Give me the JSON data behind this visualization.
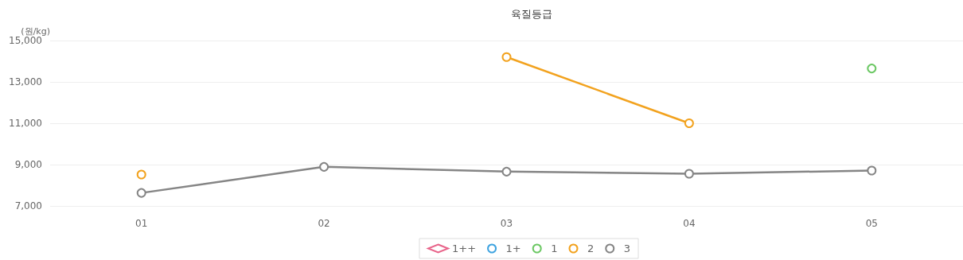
{
  "chart_data": {
    "type": "line",
    "title": "육질등급",
    "ylabel": "(원/kg)",
    "categories": [
      "01",
      "02",
      "03",
      "04",
      "05"
    ],
    "series": [
      {
        "name": "1++",
        "color": "#e8648a",
        "marker": "diamond",
        "values": [
          null,
          null,
          null,
          null,
          null
        ]
      },
      {
        "name": "1+",
        "color": "#3ea3e0",
        "values": [
          null,
          null,
          null,
          null,
          null
        ]
      },
      {
        "name": "1",
        "color": "#6cc864",
        "values": [
          null,
          null,
          null,
          null,
          13650
        ]
      },
      {
        "name": "2",
        "color": "#f2a21e",
        "values": [
          8520,
          null,
          14200,
          11000,
          null
        ]
      },
      {
        "name": "3",
        "color": "#858585",
        "values": [
          7630,
          8890,
          8660,
          8560,
          8710
        ]
      }
    ],
    "ylim": [
      7000,
      15000
    ],
    "yticks": [
      {
        "value": 7000,
        "label": "7,000"
      },
      {
        "value": 9000,
        "label": "9,000"
      },
      {
        "value": 11000,
        "label": "11,000"
      },
      {
        "value": 13000,
        "label": "13,000"
      },
      {
        "value": 15000,
        "label": "15,000"
      }
    ],
    "grid": "y",
    "legend": "bottom",
    "marker": "circle",
    "line_style": "solid"
  }
}
